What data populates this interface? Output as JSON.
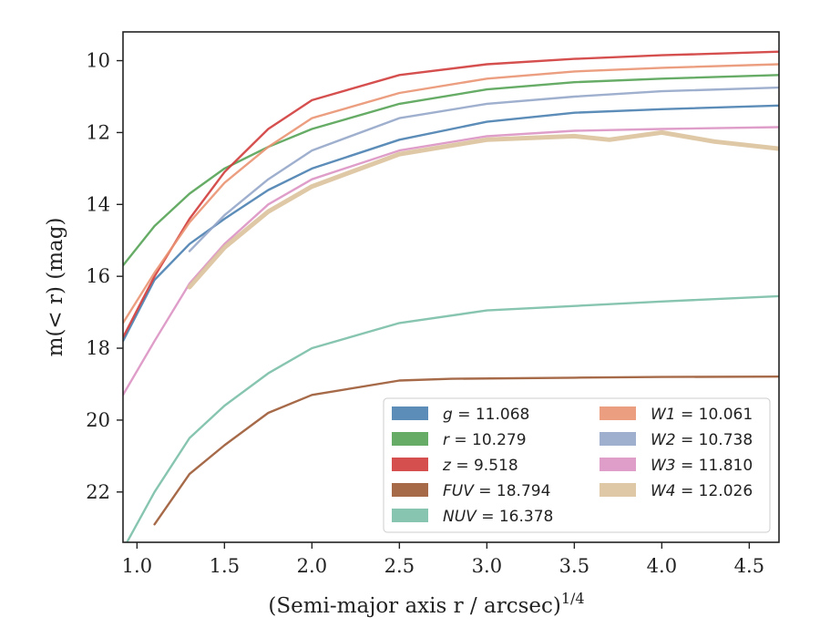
{
  "chart_data": {
    "type": "line",
    "xlabel": "(Semi-major axis r / arcsec)",
    "xlabel_superscript": "1/4",
    "ylabel": "m(< r) (mag)",
    "xlim": [
      0.92,
      4.67
    ],
    "ylim": [
      23.4,
      9.2
    ],
    "y_inverted": true,
    "grid": false,
    "legend_position": "lower-right",
    "x_ticks": [
      "1.0",
      "1.5",
      "2.0",
      "2.5",
      "3.0",
      "3.5",
      "4.0",
      "4.5"
    ],
    "y_ticks": [
      "10",
      "12",
      "14",
      "16",
      "18",
      "20",
      "22"
    ],
    "series": [
      {
        "name": "g = 11.068",
        "color": "#4a7fb0",
        "x": [
          0.92,
          1.1,
          1.3,
          1.5,
          1.75,
          2.0,
          2.5,
          3.0,
          3.5,
          4.0,
          4.67
        ],
        "y": [
          17.8,
          16.1,
          15.1,
          14.4,
          13.6,
          13.0,
          12.2,
          11.7,
          11.45,
          11.35,
          11.25
        ]
      },
      {
        "name": "r = 10.279",
        "color": "#55a355",
        "x": [
          0.92,
          1.1,
          1.3,
          1.5,
          1.75,
          2.0,
          2.5,
          3.0,
          3.5,
          4.0,
          4.67
        ],
        "y": [
          15.7,
          14.6,
          13.7,
          13.0,
          12.4,
          11.9,
          11.2,
          10.8,
          10.6,
          10.5,
          10.4
        ]
      },
      {
        "name": "z = 9.518",
        "color": "#d13c3c",
        "x": [
          0.92,
          1.1,
          1.3,
          1.5,
          1.75,
          2.0,
          2.5,
          3.0,
          3.5,
          4.0,
          4.67
        ],
        "y": [
          17.7,
          16.0,
          14.4,
          13.1,
          11.9,
          11.1,
          10.4,
          10.1,
          9.95,
          9.85,
          9.75
        ]
      },
      {
        "name": "FUV = 18.794",
        "color": "#9c5a35",
        "x": [
          1.1,
          1.3,
          1.5,
          1.75,
          2.0,
          2.5,
          2.8,
          3.5,
          4.0,
          4.67
        ],
        "y": [
          22.9,
          21.5,
          20.7,
          19.8,
          19.3,
          18.9,
          18.85,
          18.82,
          18.8,
          18.79
        ]
      },
      {
        "name": "NUV = 16.378",
        "color": "#7abfa8",
        "x": [
          0.92,
          1.1,
          1.3,
          1.5,
          1.75,
          2.0,
          2.5,
          3.0,
          3.4,
          4.0,
          4.67
        ],
        "y": [
          23.6,
          22.0,
          20.5,
          19.6,
          18.7,
          18.0,
          17.3,
          16.95,
          16.85,
          16.7,
          16.55
        ]
      },
      {
        "name": "W1 = 10.061",
        "color": "#ea9472",
        "x": [
          0.92,
          1.1,
          1.3,
          1.5,
          1.75,
          2.0,
          2.5,
          3.0,
          3.5,
          4.0,
          4.67
        ],
        "y": [
          17.3,
          15.9,
          14.5,
          13.4,
          12.4,
          11.6,
          10.9,
          10.5,
          10.3,
          10.2,
          10.1
        ]
      },
      {
        "name": "W2 = 10.738",
        "color": "#95a6c9",
        "x": [
          1.3,
          1.5,
          1.75,
          2.0,
          2.5,
          3.0,
          3.5,
          4.0,
          4.67
        ],
        "y": [
          15.3,
          14.3,
          13.3,
          12.5,
          11.6,
          11.2,
          11.0,
          10.85,
          10.75
        ]
      },
      {
        "name": "W3 = 11.810",
        "color": "#dc93c3",
        "x": [
          0.92,
          1.1,
          1.3,
          1.5,
          1.75,
          2.0,
          2.5,
          3.0,
          3.5,
          4.0,
          4.67
        ],
        "y": [
          19.3,
          17.8,
          16.2,
          15.1,
          14.0,
          13.3,
          12.5,
          12.1,
          11.95,
          11.9,
          11.85
        ]
      },
      {
        "name": "W4 = 12.026",
        "color": "#dcc29c",
        "x": [
          1.3,
          1.5,
          1.75,
          2.0,
          2.5,
          3.0,
          3.5,
          3.7,
          4.0,
          4.3,
          4.67
        ],
        "y": [
          16.3,
          15.2,
          14.2,
          13.5,
          12.6,
          12.2,
          12.1,
          12.2,
          12.0,
          12.25,
          12.45
        ]
      }
    ]
  }
}
